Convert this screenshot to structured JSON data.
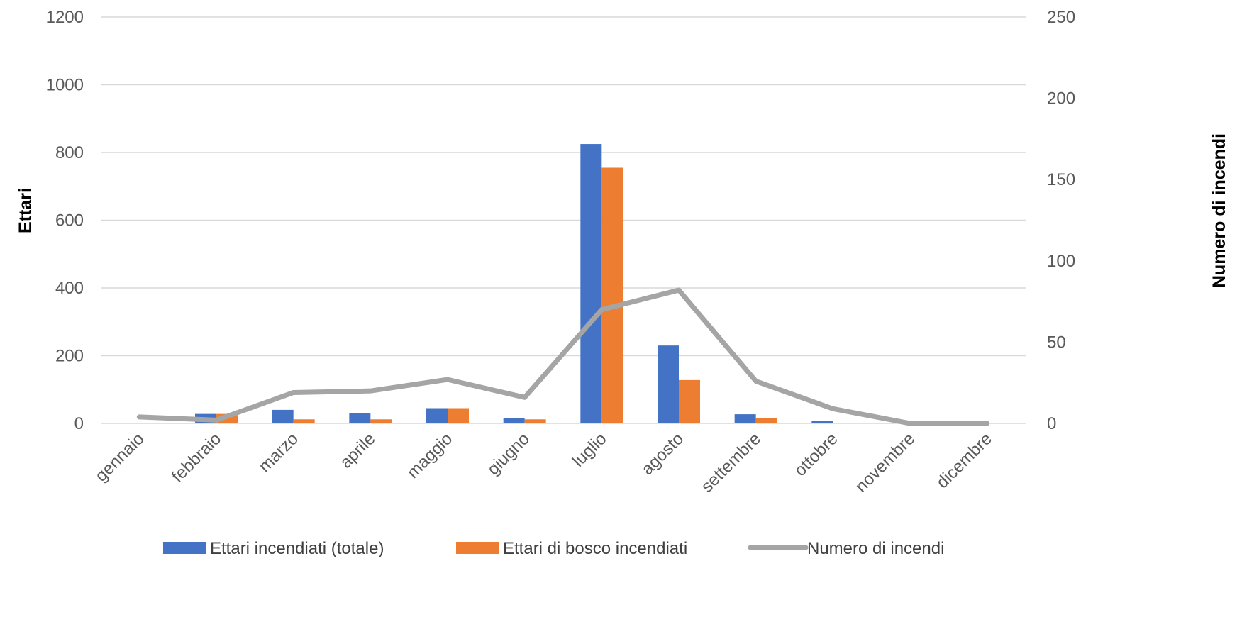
{
  "chart_data": {
    "type": "bar",
    "categories": [
      "gennaio",
      "febbraio",
      "marzo",
      "aprile",
      "maggio",
      "giugno",
      "luglio",
      "agosto",
      "settembre",
      "ottobre",
      "novembre",
      "dicembre"
    ],
    "series": [
      {
        "name": "Ettari incendiati (totale)",
        "type": "bar",
        "axis": "left",
        "color": "#4472C4",
        "values": [
          0,
          28,
          40,
          30,
          45,
          15,
          825,
          230,
          27,
          8,
          0,
          0
        ]
      },
      {
        "name": "Ettari di bosco incendiati",
        "type": "bar",
        "axis": "left",
        "color": "#ED7D31",
        "values": [
          0,
          28,
          12,
          12,
          45,
          12,
          755,
          128,
          15,
          0,
          0,
          0
        ]
      },
      {
        "name": "Numero di incendi",
        "type": "line",
        "axis": "right",
        "color": "#A5A5A5",
        "values": [
          4,
          2,
          19,
          20,
          27,
          16,
          70,
          82,
          26,
          9,
          0,
          0
        ]
      }
    ],
    "ylabel": "Ettari",
    "y2label": "Numero di incendi",
    "ylim": [
      0,
      1200
    ],
    "y2lim": [
      0,
      250
    ],
    "yticks": [
      "0",
      "200",
      "400",
      "600",
      "800",
      "1000",
      "1200"
    ],
    "y2ticks": [
      "0",
      "50",
      "100",
      "150",
      "200",
      "250"
    ],
    "grid": true,
    "legend_position": "bottom"
  }
}
